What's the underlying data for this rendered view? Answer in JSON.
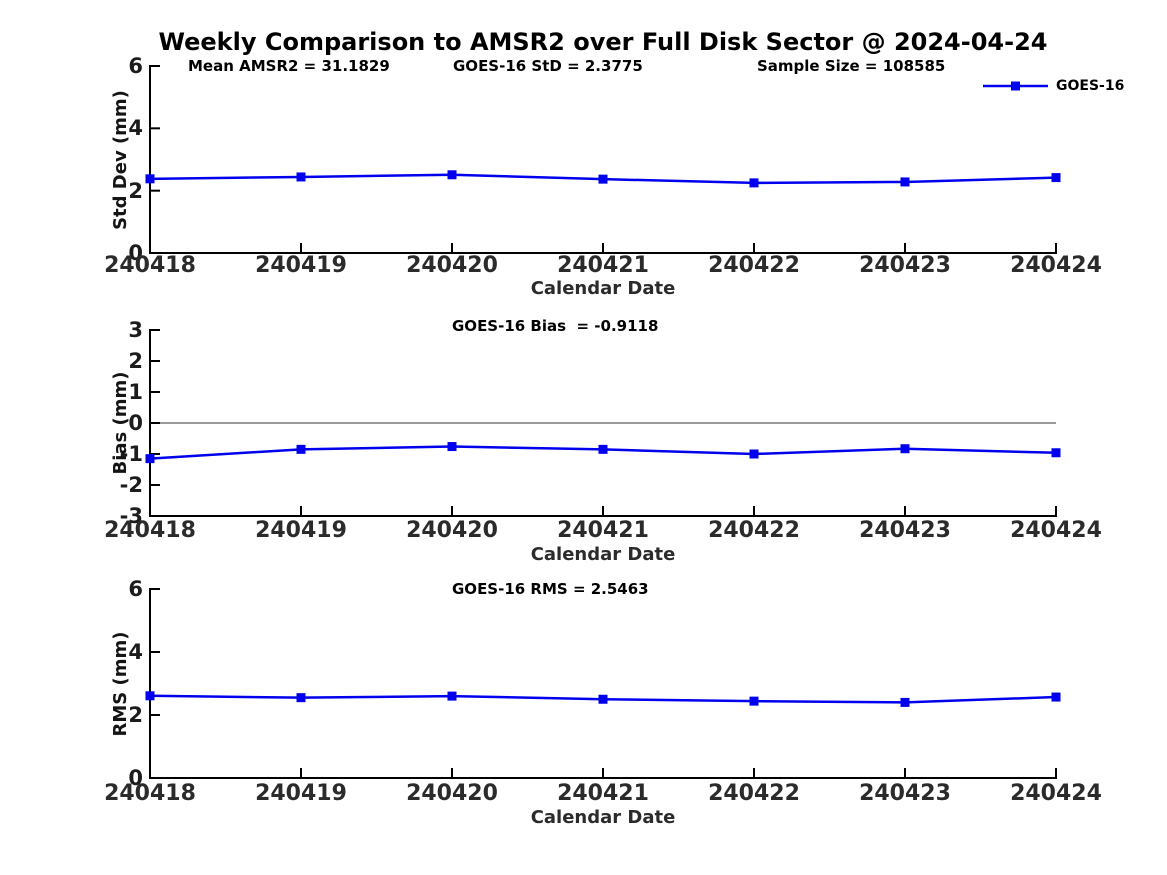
{
  "figure": {
    "title": "Weekly Comparison to AMSR2 over Full Disk Sector @ 2024-04-24"
  },
  "legend": {
    "label": "GOES-16",
    "position": "upper-right-of-first-subplot"
  },
  "colors": {
    "series": "#0000EE",
    "zero_line": "#7a7a7a",
    "axis": "#000000",
    "text": "#1c1c1c"
  },
  "chart_data": [
    {
      "type": "line",
      "title": "",
      "categories": [
        "240418",
        "240419",
        "240420",
        "240421",
        "240422",
        "240423",
        "240424"
      ],
      "series": [
        {
          "name": "GOES-16",
          "values": [
            2.38,
            2.44,
            2.51,
            2.37,
            2.25,
            2.28,
            2.42
          ]
        }
      ],
      "xlabel": "Calendar Date",
      "ylabel": "Std Dev (mm)",
      "ylim": [
        0,
        6
      ],
      "yticks": [
        0,
        2,
        4,
        6
      ],
      "grid": false,
      "zero_line": false,
      "marker": "square",
      "annotations": [
        "Mean AMSR2 = 31.1829",
        "GOES-16 StD = 2.3775",
        "Sample Size = 108585"
      ]
    },
    {
      "type": "line",
      "title": "",
      "categories": [
        "240418",
        "240419",
        "240420",
        "240421",
        "240422",
        "240423",
        "240424"
      ],
      "series": [
        {
          "name": "GOES-16",
          "values": [
            -1.15,
            -0.85,
            -0.76,
            -0.85,
            -1.0,
            -0.83,
            -0.96
          ]
        }
      ],
      "xlabel": "Calendar Date",
      "ylabel": "Bias (mm)",
      "ylim": [
        -3,
        3
      ],
      "yticks": [
        -3,
        -2,
        -1,
        0,
        1,
        2,
        3
      ],
      "grid": false,
      "zero_line": true,
      "marker": "square",
      "annotations": [
        "GOES-16 Bias  = -0.9118"
      ]
    },
    {
      "type": "line",
      "title": "",
      "categories": [
        "240418",
        "240419",
        "240420",
        "240421",
        "240422",
        "240423",
        "240424"
      ],
      "series": [
        {
          "name": "GOES-16",
          "values": [
            2.61,
            2.55,
            2.6,
            2.5,
            2.44,
            2.4,
            2.57
          ]
        }
      ],
      "xlabel": "Calendar Date",
      "ylabel": "RMS (mm)",
      "ylim": [
        0,
        6
      ],
      "yticks": [
        0,
        2,
        4,
        6
      ],
      "grid": false,
      "zero_line": false,
      "marker": "square",
      "annotations": [
        "GOES-16 RMS = 2.5463"
      ]
    }
  ]
}
